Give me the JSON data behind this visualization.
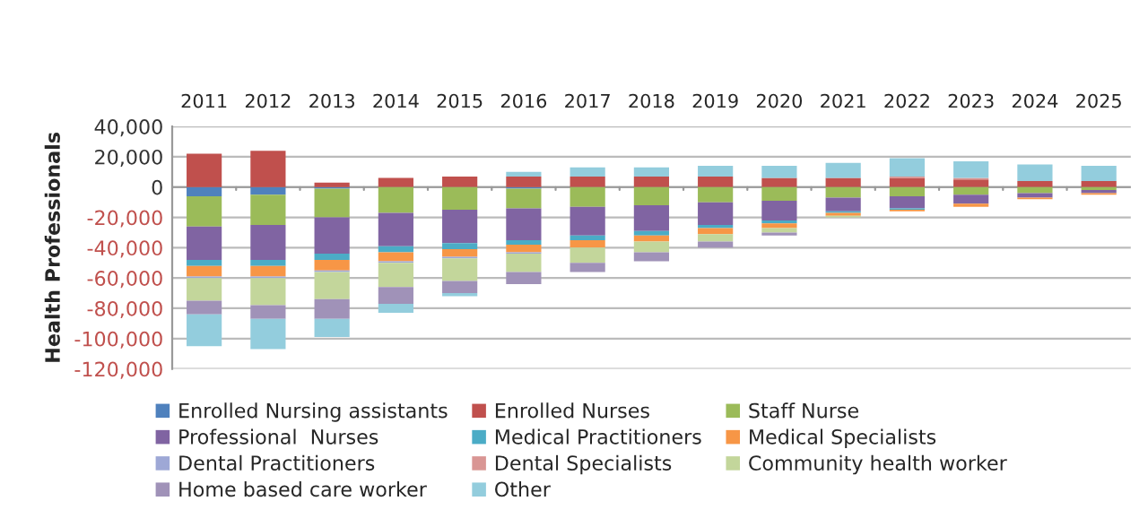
{
  "chart_data": {
    "type": "bar",
    "stacked": true,
    "ylabel": "Health Professionals",
    "categories": [
      "2011",
      "2012",
      "2013",
      "2014",
      "2015",
      "2016",
      "2017",
      "2018",
      "2019",
      "2020",
      "2021",
      "2022",
      "2023",
      "2024",
      "2025"
    ],
    "series": [
      {
        "name": "Enrolled Nursing assistants",
        "color": "#4f81bd",
        "values": [
          -6000,
          -5000,
          -1000,
          null,
          null,
          -1000,
          null,
          null,
          null,
          null,
          null,
          null,
          null,
          null,
          null
        ]
      },
      {
        "name": "Enrolled Nurses",
        "color": "#c0504d",
        "values": [
          22000,
          24000,
          3000,
          6000,
          7000,
          7000,
          7000,
          7000,
          7000,
          6000,
          6000,
          6000,
          5000,
          4000,
          4000
        ]
      },
      {
        "name": "Staff Nurse",
        "color": "#9bbb59",
        "values": [
          -20000,
          -20000,
          -19000,
          -17000,
          -15000,
          -13000,
          -13000,
          -12000,
          -10000,
          -9000,
          -7000,
          -6000,
          -5000,
          -4000,
          -2000
        ]
      },
      {
        "name": "Professional  Nurses",
        "color": "#8064a2",
        "values": [
          -22000,
          -23000,
          -24000,
          -22000,
          -22000,
          -21000,
          -19000,
          -17000,
          -15000,
          -13000,
          -9000,
          -8000,
          -6000,
          -3000,
          -2000
        ]
      },
      {
        "name": "Medical Practitioners",
        "color": "#4bacc6",
        "values": [
          -4000,
          -4000,
          -4000,
          -4000,
          -4000,
          -3000,
          -3000,
          -3000,
          -2000,
          -2000,
          -1000,
          -1000,
          null,
          null,
          null
        ]
      },
      {
        "name": "Medical Specialists",
        "color": "#f79646",
        "values": [
          -7000,
          -7000,
          -7000,
          -6000,
          -5000,
          -5000,
          -5000,
          -4000,
          -4000,
          -3000,
          -2000,
          -1000,
          -2000,
          -1000,
          -1000
        ]
      },
      {
        "name": "Dental Practitioners",
        "color": "#9ea8d6",
        "values": [
          -1000,
          -1000,
          -1000,
          -1000,
          -1000,
          -1000,
          null,
          null,
          null,
          null,
          null,
          null,
          null,
          null,
          null
        ]
      },
      {
        "name": "Dental Specialists",
        "color": "#d99694",
        "values": [
          null,
          null,
          null,
          null,
          null,
          null,
          null,
          null,
          null,
          null,
          null,
          1000,
          1000,
          null,
          null
        ]
      },
      {
        "name": "Community health worker",
        "color": "#c3d69b",
        "values": [
          -15000,
          -18000,
          -18000,
          -16000,
          -15000,
          -12000,
          -10000,
          -7000,
          -5000,
          -3000,
          -1000,
          null,
          null,
          null,
          null
        ]
      },
      {
        "name": "Home based care worker",
        "color": "#a092b8",
        "values": [
          -9000,
          -9000,
          -13000,
          -11000,
          -8000,
          -8000,
          -6000,
          -6000,
          -4000,
          -2000,
          null,
          null,
          null,
          null,
          null
        ]
      },
      {
        "name": "Other",
        "color": "#93cddd",
        "values": [
          -21000,
          -20000,
          -12000,
          -6000,
          -2000,
          3000,
          6000,
          6000,
          7000,
          8000,
          10000,
          12000,
          11000,
          11000,
          10000
        ]
      }
    ],
    "ylim": [
      -120000,
      40000
    ],
    "yticks": [
      {
        "value": -120000,
        "label": "-120,000"
      },
      {
        "value": -100000,
        "label": "-100,000"
      },
      {
        "value": -80000,
        "label": "-80,000"
      },
      {
        "value": -60000,
        "label": "-60,000"
      },
      {
        "value": -40000,
        "label": "-40,000"
      },
      {
        "value": -20000,
        "label": "-20,000"
      },
      {
        "value": 0,
        "label": "0"
      },
      {
        "value": 20000,
        "label": "20,000"
      },
      {
        "value": 40000,
        "label": "40,000"
      }
    ],
    "grid": "y",
    "legend": "bottom"
  }
}
